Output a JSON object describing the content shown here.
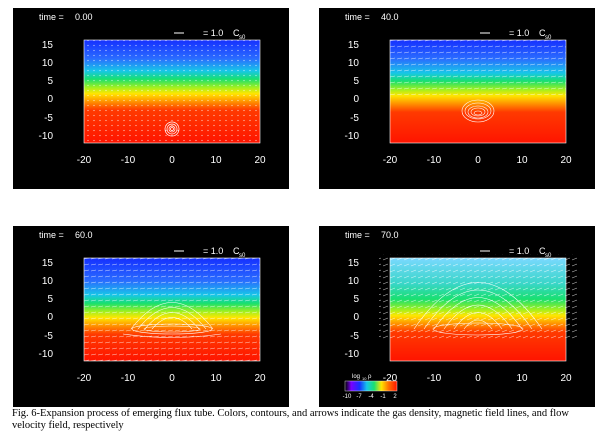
{
  "panels": [
    {
      "time_label": "time =",
      "time_value": "0.00",
      "scale_value": "= 1.0",
      "scale_unit": "C",
      "scale_sub": "s0"
    },
    {
      "time_label": "time =",
      "time_value": "40.0",
      "scale_value": "= 1.0",
      "scale_unit": "C",
      "scale_sub": "s0"
    },
    {
      "time_label": "time =",
      "time_value": "60.0",
      "scale_value": "= 1.0",
      "scale_unit": "C",
      "scale_sub": "s0"
    },
    {
      "time_label": "time =",
      "time_value": "70.0",
      "scale_value": "= 1.0",
      "scale_unit": "C",
      "scale_sub": "s0"
    }
  ],
  "axes": {
    "x_ticks": [
      "-20",
      "-10",
      "0",
      "10",
      "20"
    ],
    "y_ticks": [
      "15",
      "10",
      "5",
      "0",
      "-5",
      "-10"
    ]
  },
  "colorbar": {
    "label": "log",
    "label_sub": "10",
    "label_sym": "ρ",
    "ticks": [
      "-10",
      "-7",
      "-4",
      "-1",
      "2"
    ]
  },
  "caption": {
    "text": "Fig. 6-Expansion process of emerging flux tube. Colors, contours, and arrows indicate the gas density, magnetic field lines, and flow velocity field, respectively"
  },
  "colors": {
    "background": "#000000",
    "high_density": "#ff1a00",
    "low_density": "#1a3cff"
  }
}
